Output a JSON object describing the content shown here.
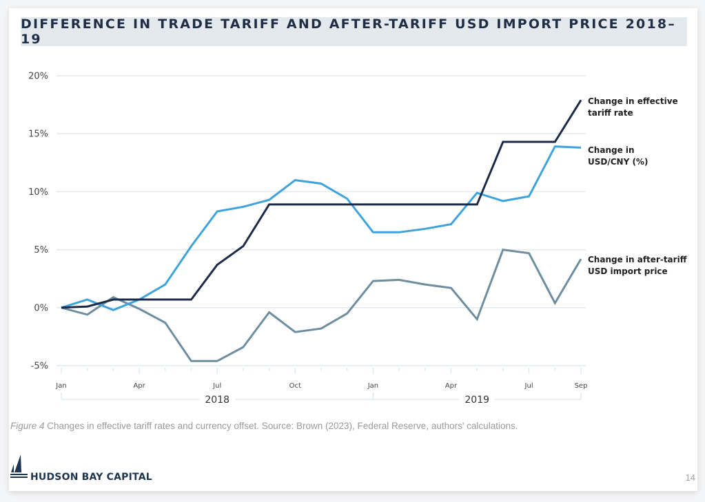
{
  "title": "DIFFERENCE IN TRADE TARIFF AND AFTER-TARIFF USD IMPORT PRICE 2018–19",
  "caption": {
    "figure_label": "Figure 4",
    "text": " Changes in effective tariff rates and currency offset. Source: Brown (2023), Federal Reserve, authors' calculations."
  },
  "footer": {
    "brand": "HUDSON BAY CAPITAL",
    "logo_icon": "sailboat-icon",
    "page_number": "14"
  },
  "colors": {
    "tariff": "#1b2a47",
    "usdcny": "#3ea3db",
    "import_price": "#6e8d9f",
    "grid": "#e2eaef",
    "title_band": "#e3e9ed"
  },
  "chart_data": {
    "type": "line",
    "title": "DIFFERENCE IN TRADE TARIFF AND AFTER-TARIFF USD IMPORT PRICE 2018–19",
    "xlabel": "",
    "ylabel": "",
    "ylim": [
      -5,
      20
    ],
    "yticks": [
      20,
      15,
      10,
      5,
      0,
      -5
    ],
    "ytick_labels": [
      "20%",
      "15%",
      "10%",
      "5%",
      "0%",
      "-5%"
    ],
    "grid": true,
    "x": [
      "Jan 2018",
      "Feb 2018",
      "Mar 2018",
      "Apr 2018",
      "May 2018",
      "Jun 2018",
      "Jul 2018",
      "Aug 2018",
      "Sep 2018",
      "Oct 2018",
      "Nov 2018",
      "Dec 2018",
      "Jan 2019",
      "Feb 2019",
      "Mar 2019",
      "Apr 2019",
      "May 2019",
      "Jun 2019",
      "Jul 2019",
      "Aug 2019",
      "Sep 2019"
    ],
    "xtick_labels": [
      {
        "index": 0,
        "label": "Jan"
      },
      {
        "index": 3,
        "label": "Apr"
      },
      {
        "index": 6,
        "label": "Jul"
      },
      {
        "index": 9,
        "label": "Oct"
      },
      {
        "index": 12,
        "label": "Jan"
      },
      {
        "index": 15,
        "label": "Apr"
      },
      {
        "index": 18,
        "label": "Jul"
      },
      {
        "index": 20,
        "label": "Sep"
      }
    ],
    "year_groups": [
      {
        "label": "2018",
        "start": 0,
        "end": 12
      },
      {
        "label": "2019",
        "start": 12,
        "end": 20
      }
    ],
    "legend": "direct-labels-right",
    "series": [
      {
        "key": "tariff",
        "name": "Change in effective tariff rate",
        "label_lines": [
          "Change in effective",
          "tariff rate"
        ],
        "values": [
          0,
          0.1,
          0.7,
          0.7,
          0.7,
          0.7,
          3.7,
          5.3,
          8.9,
          8.9,
          8.9,
          8.9,
          8.9,
          8.9,
          8.9,
          8.9,
          8.9,
          14.3,
          14.3,
          14.3,
          17.9
        ]
      },
      {
        "key": "usdcny",
        "name": "Change in USD/CNY (%)",
        "label_lines": [
          "Change in",
          "USD/CNY (%)"
        ],
        "values": [
          0,
          0.7,
          -0.2,
          0.7,
          2.0,
          5.3,
          8.3,
          8.7,
          9.3,
          11.0,
          10.7,
          9.4,
          6.5,
          6.5,
          6.8,
          7.2,
          9.9,
          9.2,
          9.6,
          13.9,
          13.8
        ]
      },
      {
        "key": "import_price",
        "name": "Change in after-tariff USD import price",
        "label_lines": [
          "Change in after-tariff",
          "USD import price"
        ],
        "values": [
          0,
          -0.6,
          0.9,
          -0.1,
          -1.3,
          -4.6,
          -4.6,
          -3.4,
          -0.4,
          -2.1,
          -1.8,
          -0.5,
          2.3,
          2.4,
          2.0,
          1.7,
          -1.0,
          5.0,
          4.7,
          0.4,
          4.2
        ]
      }
    ]
  }
}
